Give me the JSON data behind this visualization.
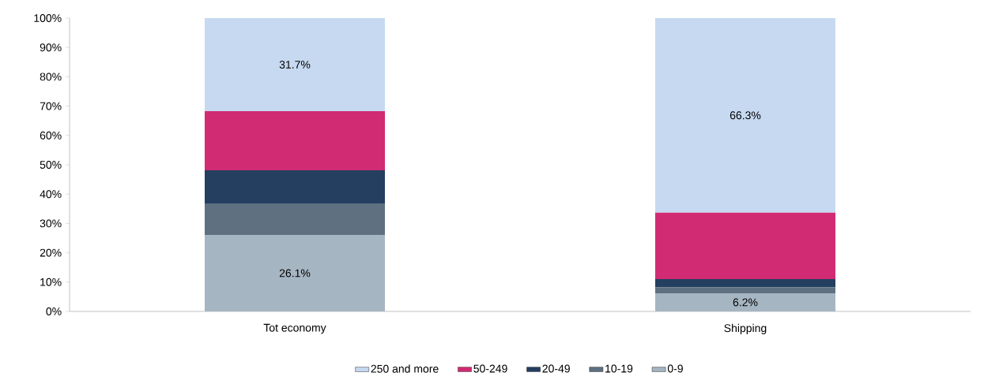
{
  "chart_data": {
    "type": "bar",
    "stacked": true,
    "categories": [
      "Tot economy",
      "Shipping"
    ],
    "series": [
      {
        "name": "0-9",
        "color": "#a6b5c2",
        "values": [
          26.1,
          6.2
        ],
        "value_labels": [
          "26.1%",
          "6.2%"
        ]
      },
      {
        "name": "10-19",
        "color": "#5f7080",
        "values": [
          10.5,
          2.1
        ]
      },
      {
        "name": "20-49",
        "color": "#243f60",
        "values": [
          11.5,
          2.7
        ]
      },
      {
        "name": "50-249",
        "color": "#d12b73",
        "values": [
          20.2,
          22.7
        ]
      },
      {
        "name": "250 and more",
        "color": "#c6d9f1",
        "values": [
          31.7,
          66.3
        ],
        "value_labels": [
          "31.7%",
          "66.3%"
        ]
      }
    ],
    "ylim": [
      0,
      100
    ],
    "yticks": [
      {
        "value": 0,
        "label": "0%"
      },
      {
        "value": 10,
        "label": "10%"
      },
      {
        "value": 20,
        "label": "20%"
      },
      {
        "value": 30,
        "label": "30%"
      },
      {
        "value": 40,
        "label": "40%"
      },
      {
        "value": 50,
        "label": "50%"
      },
      {
        "value": 60,
        "label": "60%"
      },
      {
        "value": 70,
        "label": "70%"
      },
      {
        "value": 80,
        "label": "80%"
      },
      {
        "value": 90,
        "label": "90%"
      },
      {
        "value": 100,
        "label": "100%"
      }
    ],
    "grid": false,
    "legend": "bottom"
  }
}
